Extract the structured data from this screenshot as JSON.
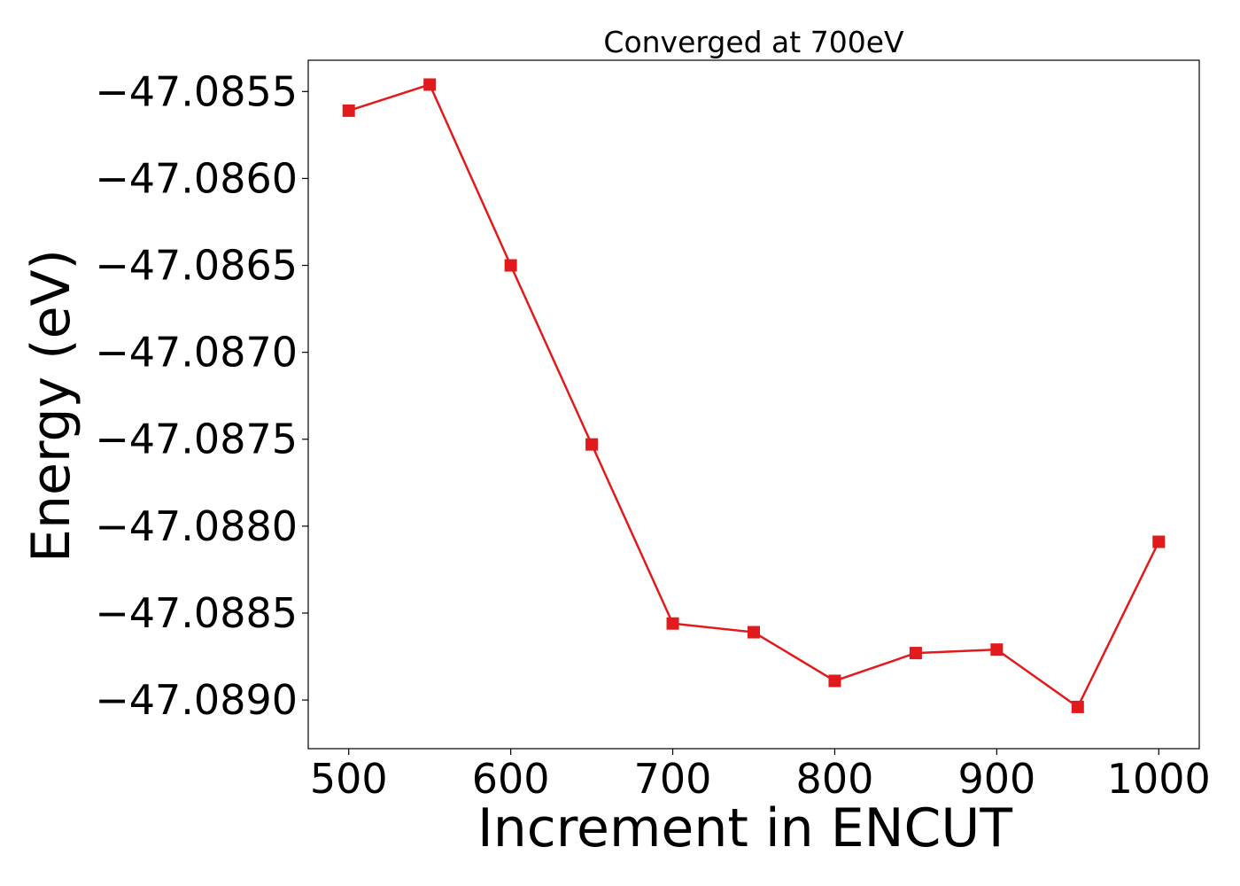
{
  "chart_data": {
    "type": "line",
    "title": "Converged at 700eV",
    "xlabel": "Increment in ENCUT",
    "ylabel": "Energy (eV)",
    "x": [
      500,
      550,
      600,
      650,
      700,
      750,
      800,
      850,
      900,
      950,
      1000
    ],
    "series": [
      {
        "values": [
          -47.08561,
          -47.08546,
          -47.0865,
          -47.08753,
          -47.08856,
          -47.08861,
          -47.08889,
          -47.08873,
          -47.08871,
          -47.08904,
          -47.08809
        ],
        "color": "#e31a1c",
        "marker": "square"
      }
    ],
    "xticks": [
      500,
      600,
      700,
      800,
      900,
      1000
    ],
    "xtick_labels": [
      "500",
      "600",
      "700",
      "800",
      "900",
      "1000"
    ],
    "yticks": [
      -47.0855,
      -47.086,
      -47.0865,
      -47.087,
      -47.0875,
      -47.088,
      -47.0885,
      -47.089
    ],
    "ytick_labels": [
      "−47.0855",
      "−47.0860",
      "−47.0865",
      "−47.0870",
      "−47.0875",
      "−47.0880",
      "−47.0885",
      "−47.0890"
    ],
    "xlim": [
      475,
      1025
    ],
    "ylim": [
      -47.08928,
      -47.08532
    ],
    "grid": false,
    "legend": false
  }
}
